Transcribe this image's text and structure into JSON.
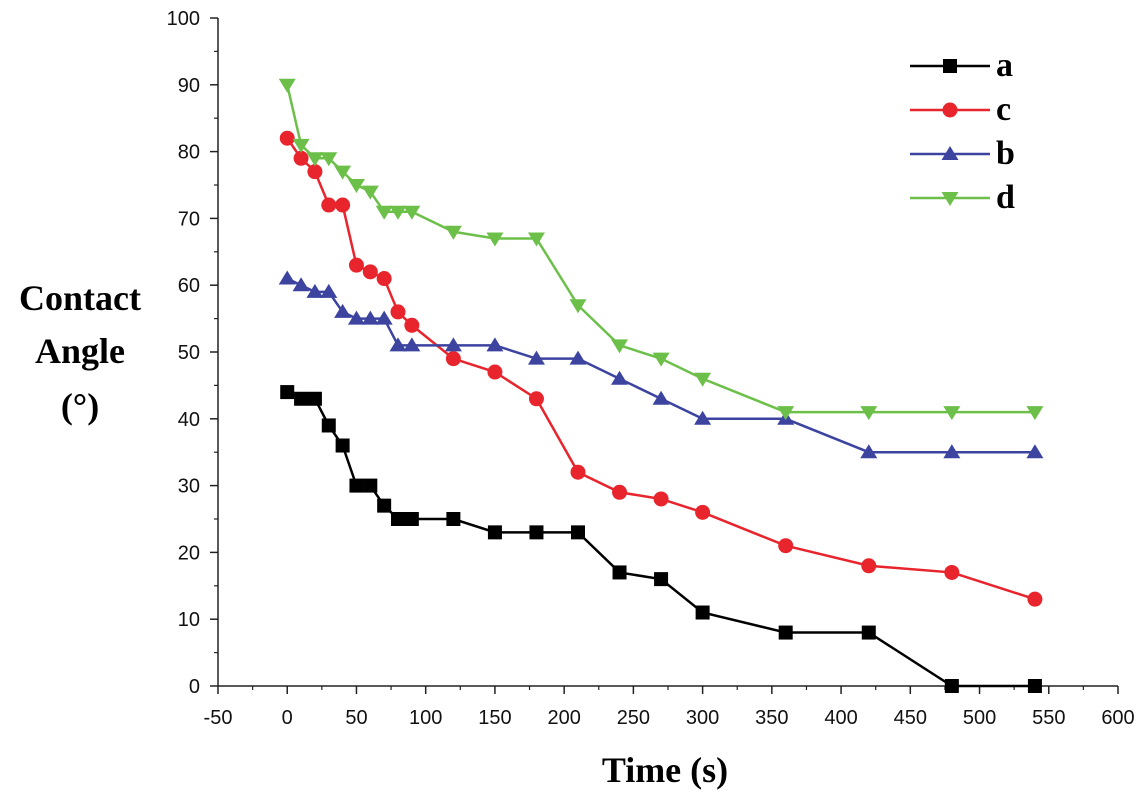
{
  "chart_data": {
    "type": "line",
    "title": "",
    "xlabel": "Time (s)",
    "ylabel_lines": [
      "Contact",
      "Angle",
      "(°)"
    ],
    "xlim": [
      -50,
      600
    ],
    "ylim": [
      0,
      100
    ],
    "x_ticks": [
      -50,
      0,
      50,
      100,
      150,
      200,
      250,
      300,
      350,
      400,
      450,
      500,
      550,
      600
    ],
    "y_ticks": [
      0,
      10,
      20,
      30,
      40,
      50,
      60,
      70,
      80,
      90,
      100
    ],
    "grid": false,
    "legend_position": "top-right",
    "legend_order": [
      "a",
      "c",
      "b",
      "d"
    ],
    "series": [
      {
        "name": "a",
        "color": "#000000",
        "marker": "square",
        "x": [
          0,
          10,
          20,
          30,
          40,
          50,
          60,
          70,
          80,
          90,
          120,
          150,
          180,
          210,
          240,
          270,
          300,
          360,
          420,
          480,
          540
        ],
        "y": [
          44,
          43,
          43,
          39,
          36,
          30,
          30,
          27,
          25,
          25,
          25,
          23,
          23,
          23,
          17,
          16,
          11,
          8,
          8,
          0,
          0
        ]
      },
      {
        "name": "c",
        "color": "#e8242c",
        "marker": "circle",
        "x": [
          0,
          10,
          20,
          30,
          40,
          50,
          60,
          70,
          80,
          90,
          120,
          150,
          180,
          210,
          240,
          270,
          300,
          360,
          420,
          480,
          540
        ],
        "y": [
          82,
          79,
          77,
          72,
          72,
          63,
          62,
          61,
          56,
          54,
          49,
          47,
          43,
          32,
          29,
          28,
          26,
          21,
          18,
          17,
          13
        ]
      },
      {
        "name": "b",
        "color": "#3c44a0",
        "marker": "triangle-up",
        "x": [
          0,
          10,
          20,
          30,
          40,
          50,
          60,
          70,
          80,
          90,
          120,
          150,
          180,
          210,
          240,
          270,
          300,
          360,
          420,
          480,
          540
        ],
        "y": [
          61,
          60,
          59,
          59,
          56,
          55,
          55,
          55,
          51,
          51,
          51,
          51,
          49,
          49,
          46,
          43,
          40,
          40,
          35,
          35,
          35
        ]
      },
      {
        "name": "d",
        "color": "#6cc04a",
        "marker": "triangle-down",
        "x": [
          0,
          10,
          20,
          30,
          40,
          50,
          60,
          70,
          80,
          90,
          120,
          150,
          180,
          210,
          240,
          270,
          300,
          360,
          420,
          480,
          540
        ],
        "y": [
          90,
          81,
          79,
          79,
          77,
          75,
          74,
          71,
          71,
          71,
          68,
          67,
          67,
          57,
          51,
          49,
          46,
          41,
          41,
          41,
          41
        ]
      }
    ]
  }
}
